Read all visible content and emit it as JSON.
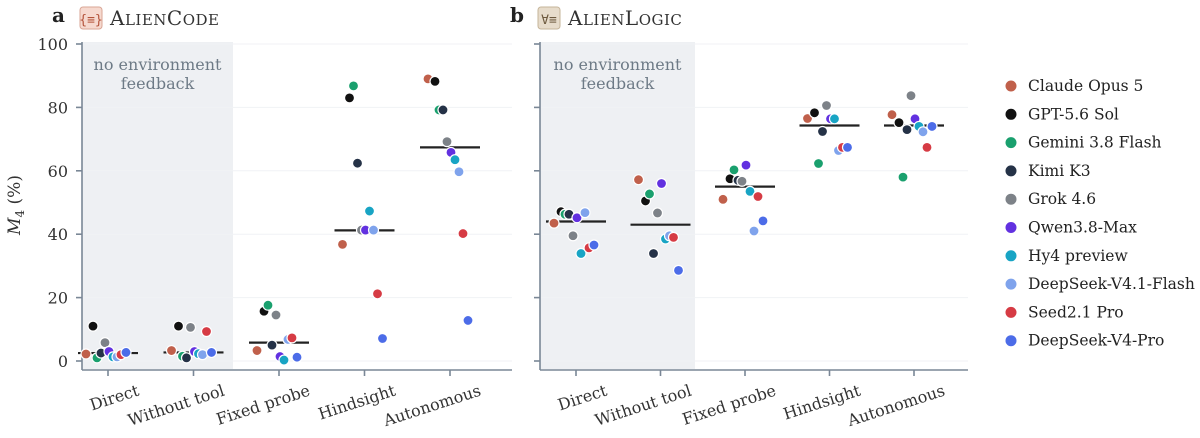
{
  "models": [
    {
      "name": "Claude Opus 5",
      "color": "#c0604b"
    },
    {
      "name": "GPT-5.6 Sol",
      "color": "#111111"
    },
    {
      "name": "Gemini 3.8 Flash",
      "color": "#1aa06e"
    },
    {
      "name": "Kimi K3",
      "color": "#253247"
    },
    {
      "name": "Grok 4.6",
      "color": "#7d8288"
    },
    {
      "name": "Qwen3.8-Max",
      "color": "#6231e0"
    },
    {
      "name": "Hy4 preview",
      "color": "#18a4c4"
    },
    {
      "name": "DeepSeek-V4.1-Flash",
      "color": "#7fa3ec"
    },
    {
      "name": "Seed2.1 Pro",
      "color": "#d63b44"
    },
    {
      "name": "DeepSeek-V4-Pro",
      "color": "#4c6ce8"
    }
  ],
  "shade_note": [
    "no environment",
    "feedback"
  ],
  "chart_data": [
    {
      "panel": "a",
      "title": "AlienCode",
      "type": "scatter",
      "categories": [
        "Direct",
        "Without tool",
        "Fixed probe",
        "Hindsight",
        "Autonomous"
      ],
      "ylabel": "M4 (%)",
      "ylim": [
        0,
        100
      ],
      "yticks": [
        0,
        20,
        40,
        60,
        80,
        100
      ],
      "shaded_categories": [
        "Direct",
        "Without tool"
      ],
      "means": [
        2.5,
        2.7,
        5.8,
        41.2,
        67.4
      ],
      "series": [
        {
          "name": "Claude Opus 5",
          "values": [
            2.2,
            3.3,
            3.3,
            36.8,
            89.0
          ]
        },
        {
          "name": "GPT-5.6 Sol",
          "values": [
            11.0,
            11.0,
            15.7,
            83.0,
            88.2
          ]
        },
        {
          "name": "Gemini 3.8 Flash",
          "values": [
            1.0,
            1.5,
            17.6,
            86.8,
            79.2
          ]
        },
        {
          "name": "Kimi K3",
          "values": [
            2.5,
            1.0,
            5.0,
            62.4,
            79.2
          ]
        },
        {
          "name": "Grok 4.6",
          "values": [
            5.8,
            10.6,
            14.5,
            41.3,
            69.2
          ]
        },
        {
          "name": "Qwen3.8-Max",
          "values": [
            3.0,
            3.0,
            1.4,
            41.3,
            65.8
          ]
        },
        {
          "name": "Hy4 preview",
          "values": [
            1.3,
            2.3,
            0.3,
            47.3,
            63.5
          ]
        },
        {
          "name": "DeepSeek-V4.1-Flash",
          "values": [
            1.3,
            2.0,
            6.8,
            41.3,
            59.7
          ]
        },
        {
          "name": "Seed2.1 Pro",
          "values": [
            2.0,
            9.3,
            7.3,
            21.2,
            40.2
          ]
        },
        {
          "name": "DeepSeek-V4-Pro",
          "values": [
            2.7,
            2.7,
            1.2,
            7.1,
            12.8
          ]
        }
      ]
    },
    {
      "panel": "b",
      "title": "AlienLogic",
      "type": "scatter",
      "categories": [
        "Direct",
        "Without tool",
        "Fixed probe",
        "Hindsight",
        "Autonomous"
      ],
      "ylim": [
        0,
        100
      ],
      "shaded_categories": [
        "Direct",
        "Without tool"
      ],
      "means": [
        44.0,
        43.0,
        55.0,
        74.3,
        74.3
      ],
      "series": [
        {
          "name": "Claude Opus 5",
          "values": [
            43.5,
            57.2,
            51.0,
            76.5,
            77.7
          ]
        },
        {
          "name": "GPT-5.6 Sol",
          "values": [
            47.1,
            50.5,
            57.5,
            78.3,
            75.2
          ]
        },
        {
          "name": "Gemini 3.8 Flash",
          "values": [
            46.3,
            52.7,
            60.3,
            62.3,
            58.0
          ]
        },
        {
          "name": "Kimi K3",
          "values": [
            46.3,
            33.9,
            57.0,
            72.4,
            73.0
          ]
        },
        {
          "name": "Grok 4.6",
          "values": [
            39.5,
            46.7,
            56.7,
            80.6,
            83.7
          ]
        },
        {
          "name": "Qwen3.8-Max",
          "values": [
            45.2,
            56.0,
            61.8,
            76.4,
            76.4
          ]
        },
        {
          "name": "Hy4 preview",
          "values": [
            33.9,
            38.5,
            53.5,
            76.4,
            74.0
          ]
        },
        {
          "name": "DeepSeek-V4.1-Flash",
          "values": [
            46.8,
            39.5,
            41.0,
            66.4,
            72.3
          ]
        },
        {
          "name": "Seed2.1 Pro",
          "values": [
            35.7,
            39.0,
            51.9,
            67.4,
            67.4
          ]
        },
        {
          "name": "DeepSeek-V4-Pro",
          "values": [
            36.6,
            28.6,
            44.2,
            67.4,
            74.0
          ]
        }
      ]
    }
  ]
}
